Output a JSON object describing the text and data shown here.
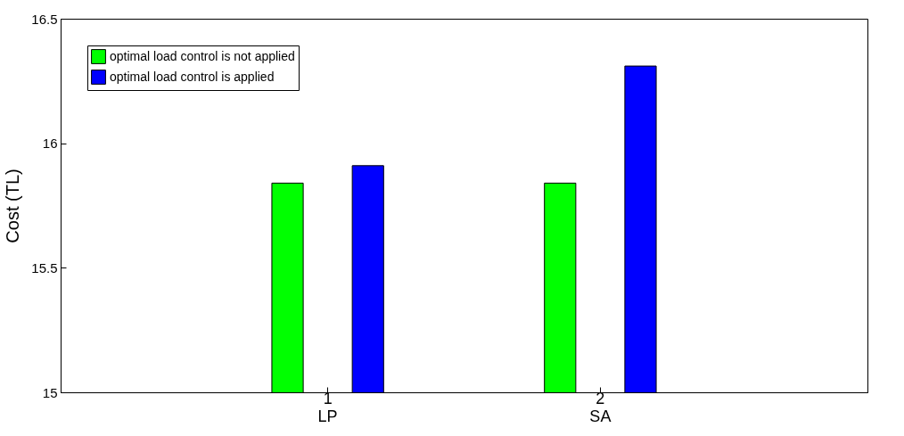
{
  "chart_data": {
    "type": "bar",
    "ylabel": "Cost (TL)",
    "categories": [
      "1",
      "2"
    ],
    "annotations": [
      "LP",
      "SA"
    ],
    "series": [
      {
        "name": "optimal load control is not applied",
        "color": "#00ff00",
        "values": [
          15.84,
          15.84
        ]
      },
      {
        "name": "optimal load control is applied",
        "color": "#0000ff",
        "values": [
          15.91,
          16.31
        ]
      }
    ],
    "ylim": [
      15,
      16.5
    ],
    "yticks": [
      15,
      15.5,
      16,
      16.5
    ],
    "legend": "top left",
    "grid": false
  }
}
